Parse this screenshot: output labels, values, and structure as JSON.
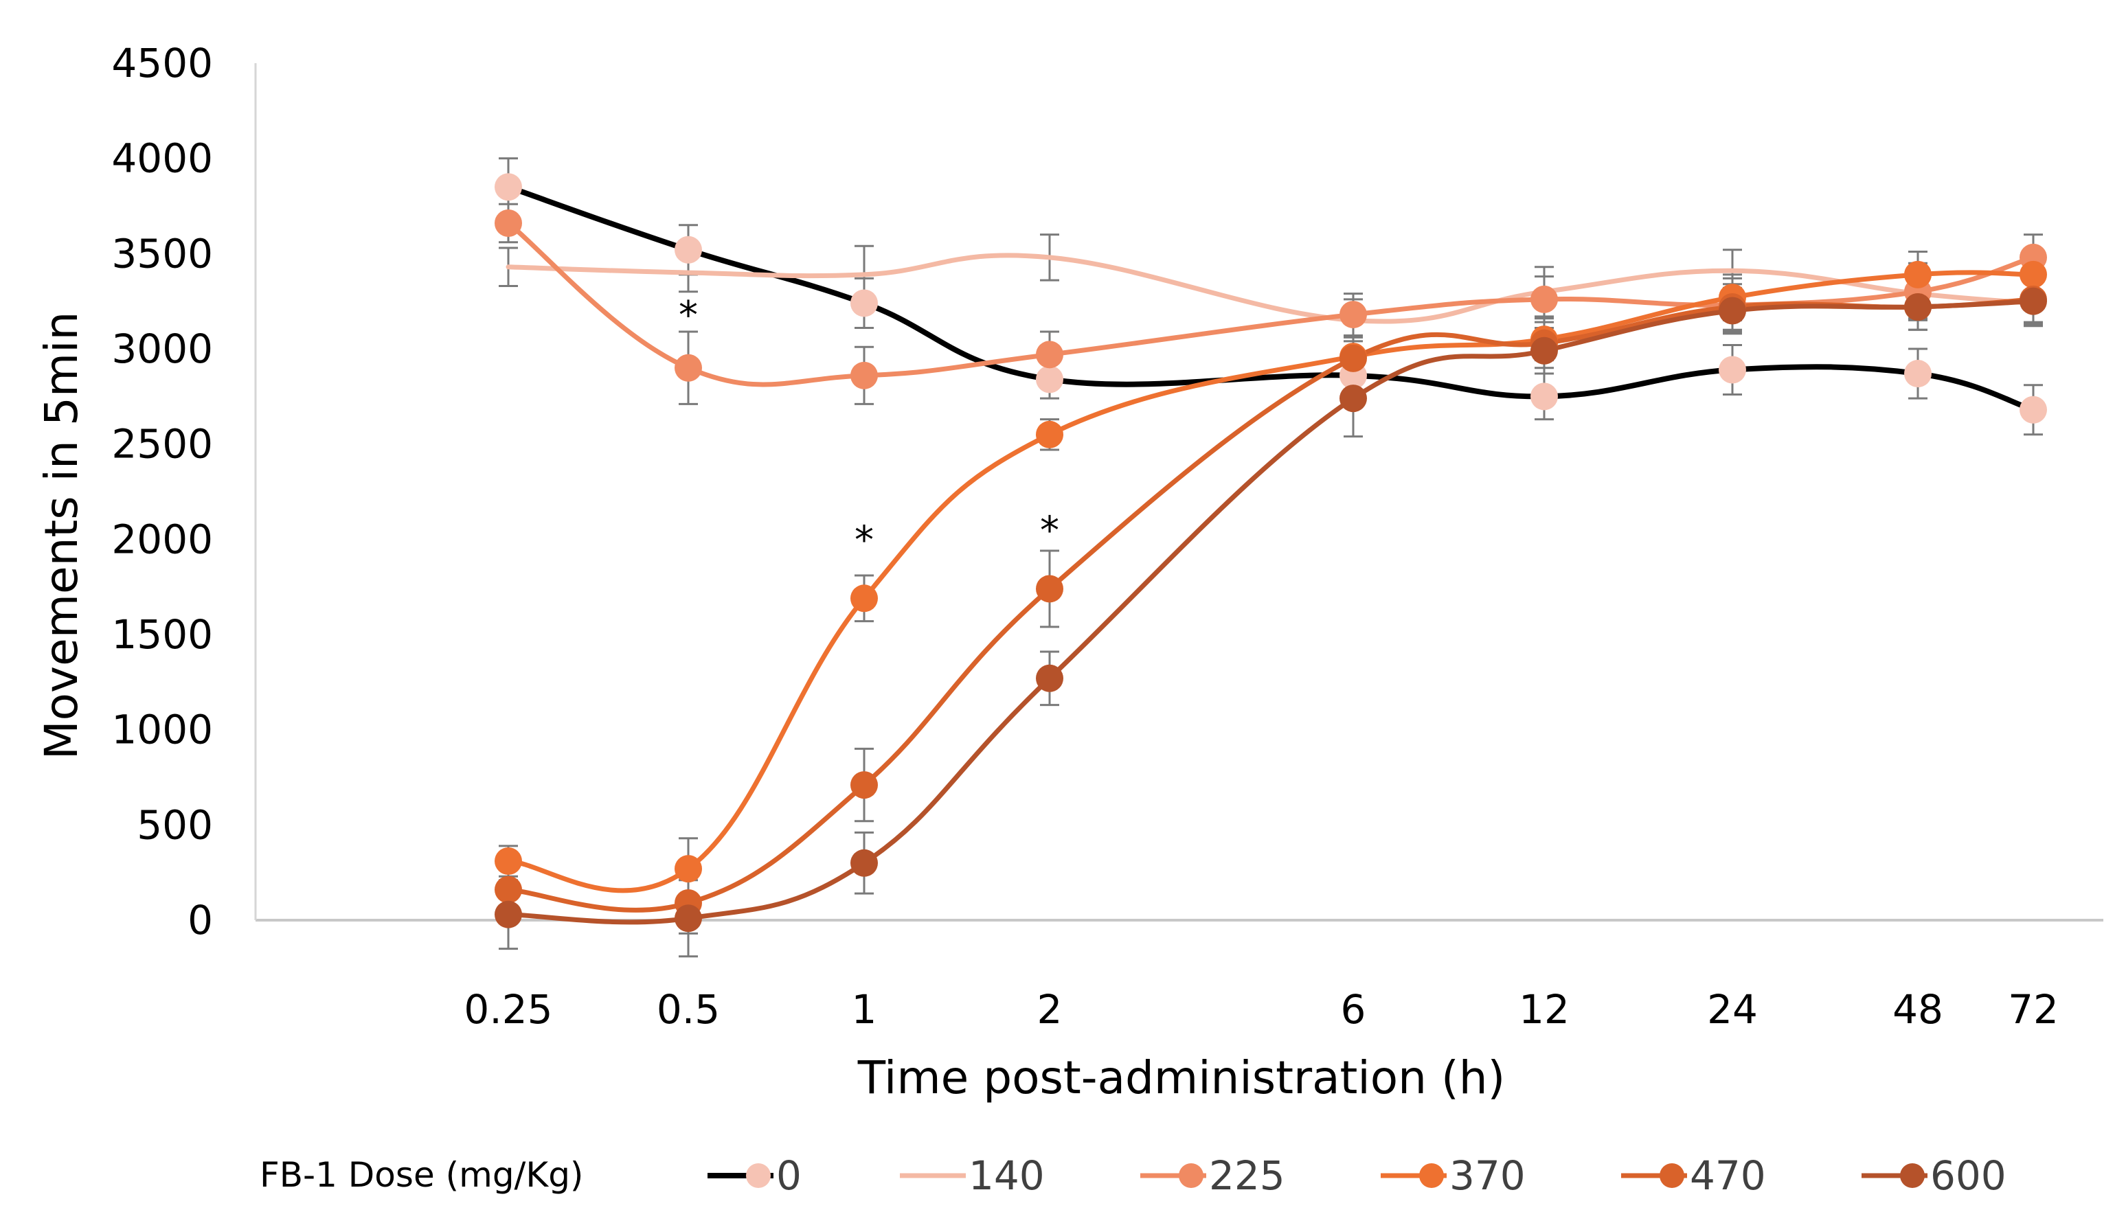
{
  "chart_data": {
    "type": "line",
    "xlabel": "Time post-administration (h)",
    "ylabel": "Movements in 5min",
    "ylim": [
      0,
      4500
    ],
    "yticks": [
      0,
      500,
      1000,
      1500,
      2000,
      2500,
      3000,
      3500,
      4000,
      4500
    ],
    "categories": [
      "0.25",
      "0.5",
      "1",
      "2",
      "6",
      "12",
      "24",
      "48",
      "72"
    ],
    "legend_title": "FB-1 Dose  (mg/Kg)",
    "legend_position": "bottom",
    "grid": false,
    "series": [
      {
        "name": "0",
        "color": "#000000",
        "marker_color": "#f6c3b4",
        "marker": true,
        "values": [
          3850,
          3520,
          3240,
          2840,
          2860,
          2750,
          2890,
          2870,
          2680
        ],
        "errors": [
          150,
          130,
          130,
          100,
          120,
          120,
          130,
          130,
          130
        ]
      },
      {
        "name": "140",
        "color": "#f4b9a4",
        "marker": false,
        "values": [
          3430,
          3400,
          3390,
          3480,
          3150,
          3300,
          3410,
          3290,
          3240
        ],
        "errors": [
          100,
          100,
          150,
          120,
          110,
          130,
          110,
          130,
          120
        ]
      },
      {
        "name": "225",
        "color": "#f08a62",
        "marker": true,
        "values": [
          3660,
          2900,
          2860,
          2970,
          3180,
          3260,
          3230,
          3300,
          3480
        ],
        "errors": [
          100,
          190,
          150,
          120,
          110,
          120,
          140,
          150,
          120
        ]
      },
      {
        "name": "370",
        "color": "#ee7130",
        "marker": true,
        "values": [
          310,
          270,
          1690,
          2550,
          2960,
          3050,
          3270,
          3390,
          3390
        ],
        "errors": [
          80,
          160,
          120,
          80,
          100,
          110,
          120,
          120,
          120
        ]
      },
      {
        "name": "470",
        "color": "#d9622a",
        "marker": true,
        "values": [
          160,
          90,
          710,
          1740,
          2950,
          3030,
          3220,
          3220,
          3260
        ],
        "errors": [
          150,
          160,
          190,
          200,
          120,
          130,
          120,
          120,
          120
        ]
      },
      {
        "name": "600",
        "color": "#b5522a",
        "marker": true,
        "values": [
          30,
          10,
          300,
          1270,
          2740,
          2990,
          3200,
          3220,
          3250
        ],
        "errors": [
          180,
          200,
          160,
          140,
          200,
          120,
          120,
          120,
          120
        ]
      }
    ],
    "annotations": [
      {
        "text": "*",
        "x": "0.5",
        "y": 3180
      },
      {
        "text": "*",
        "x": "1",
        "y": 2000
      },
      {
        "text": "*",
        "x": "2",
        "y": 2050
      }
    ]
  }
}
